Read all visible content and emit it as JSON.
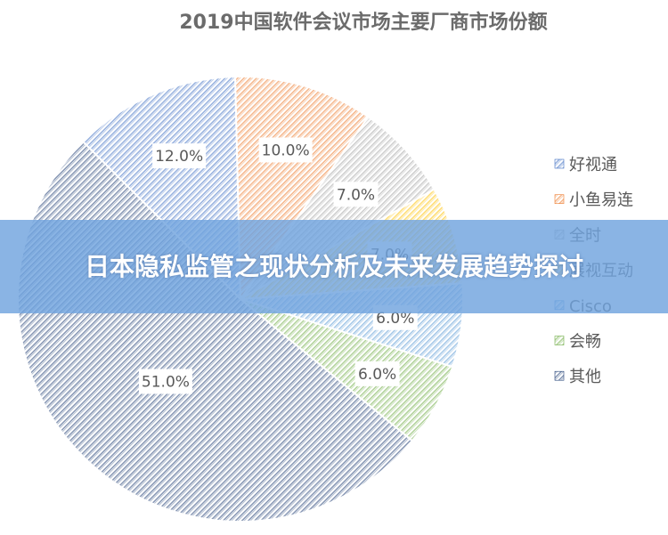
{
  "banner": {
    "text": "日本隐私监管之现状分析及未来发展趋势探讨"
  },
  "chart_data": {
    "type": "pie",
    "title": "2019中国软件会议市场主要厂商市场份额",
    "start_angle_deg": -135,
    "direction": "clockwise",
    "legend_position": "right",
    "slices": [
      {
        "name": "好视通",
        "value": 12.0,
        "label": "12.0%",
        "color": "#4472c4"
      },
      {
        "name": "小鱼易连",
        "value": 10.0,
        "label": "10.0%",
        "color": "#ed7d31"
      },
      {
        "name": "全时",
        "value": 7.0,
        "label": "7.0%",
        "color": "#a5a5a5"
      },
      {
        "name": "展视互动",
        "value": 7.0,
        "label": "7.0%",
        "color": "#ffc000"
      },
      {
        "name": "Cisco",
        "value": 6.0,
        "label": "6.0%",
        "color": "#5b9bd5"
      },
      {
        "name": "会畅",
        "value": 6.0,
        "label": "6.0%",
        "color": "#70ad47"
      },
      {
        "name": "其他",
        "value": 51.0,
        "label": "51.0%",
        "color": "#264478"
      }
    ]
  }
}
